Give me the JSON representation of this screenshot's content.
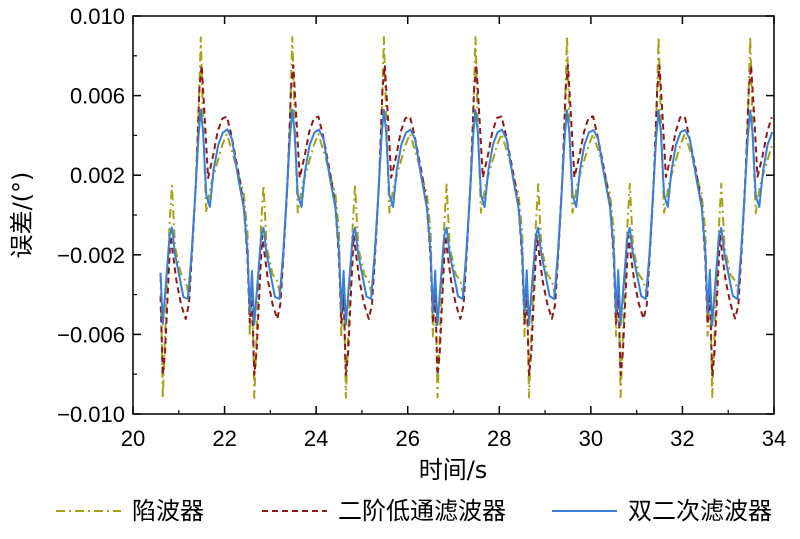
{
  "chart_data": {
    "type": "line",
    "title": "",
    "xlabel": "时间/s",
    "ylabel": "误差/(°)",
    "xlim": [
      20,
      34
    ],
    "ylim": [
      -0.01,
      0.01
    ],
    "x_ticks": [
      20,
      22,
      24,
      26,
      28,
      30,
      32,
      34
    ],
    "x_tick_labels": [
      "20",
      "22",
      "24",
      "26",
      "28",
      "30",
      "32",
      "34"
    ],
    "y_ticks": [
      -0.01,
      -0.006,
      -0.002,
      0.002,
      0.006,
      0.01
    ],
    "y_tick_labels": [
      "−0.010",
      "−0.006",
      "−0.002",
      "0.002",
      "0.006",
      "0.010"
    ],
    "grid": false,
    "legend_position": "bottom",
    "period": 2,
    "x_start": 20.6,
    "x_end": 34,
    "series": [
      {
        "name": "陷波器",
        "color": "#a3a31a",
        "style": "dashdot",
        "profile": [
          [
            0.0,
            -0.003
          ],
          [
            0.05,
            -0.009
          ],
          [
            0.1,
            -0.006
          ],
          [
            0.2,
            -0.0005
          ],
          [
            0.25,
            0.0015
          ],
          [
            0.32,
            -0.0015
          ],
          [
            0.45,
            -0.003
          ],
          [
            0.55,
            -0.0035
          ],
          [
            0.62,
            -0.004
          ],
          [
            0.68,
            -0.002
          ],
          [
            0.75,
            0.0005
          ],
          [
            0.82,
            0.004
          ],
          [
            0.88,
            0.009
          ],
          [
            0.94,
            0.004
          ],
          [
            1.0,
            0.0
          ],
          [
            1.1,
            0.0015
          ],
          [
            1.2,
            0.0025
          ],
          [
            1.35,
            0.0035
          ],
          [
            1.45,
            0.004
          ],
          [
            1.6,
            0.003
          ],
          [
            1.72,
            0.002
          ],
          [
            1.82,
            0.001
          ],
          [
            1.9,
            -0.001
          ],
          [
            1.95,
            -0.006
          ],
          [
            2.0,
            -0.003
          ]
        ]
      },
      {
        "name": "二阶低通滤波器",
        "color": "#8b1a1a",
        "style": "dashed",
        "profile": [
          [
            0.0,
            -0.004
          ],
          [
            0.05,
            -0.008
          ],
          [
            0.1,
            -0.007
          ],
          [
            0.15,
            -0.0045
          ],
          [
            0.22,
            -0.001
          ],
          [
            0.28,
            -0.002
          ],
          [
            0.35,
            -0.0035
          ],
          [
            0.45,
            -0.0045
          ],
          [
            0.55,
            -0.005
          ],
          [
            0.62,
            -0.0045
          ],
          [
            0.7,
            -0.0015
          ],
          [
            0.78,
            0.002
          ],
          [
            0.85,
            0.0065
          ],
          [
            0.9,
            0.0075
          ],
          [
            0.96,
            0.005
          ],
          [
            1.04,
            0.002
          ],
          [
            1.15,
            0.003
          ],
          [
            1.25,
            0.004
          ],
          [
            1.35,
            0.0048
          ],
          [
            1.45,
            0.005
          ],
          [
            1.55,
            0.004
          ],
          [
            1.7,
            0.002
          ],
          [
            1.82,
            0.0005
          ],
          [
            1.9,
            -0.002
          ],
          [
            1.95,
            -0.0055
          ],
          [
            2.0,
            -0.004
          ]
        ]
      },
      {
        "name": "双二次滤波器",
        "color": "#3a7fd5",
        "style": "solid",
        "profile": [
          [
            0.0,
            -0.0028
          ],
          [
            0.05,
            -0.0055
          ],
          [
            0.1,
            -0.004
          ],
          [
            0.2,
            -0.001
          ],
          [
            0.25,
            -0.0005
          ],
          [
            0.32,
            -0.002
          ],
          [
            0.4,
            -0.003
          ],
          [
            0.5,
            -0.004
          ],
          [
            0.6,
            -0.0042
          ],
          [
            0.68,
            -0.002
          ],
          [
            0.76,
            0.001
          ],
          [
            0.83,
            0.004
          ],
          [
            0.88,
            0.0053
          ],
          [
            0.93,
            0.004
          ],
          [
            1.0,
            0.001
          ],
          [
            1.08,
            0.0005
          ],
          [
            1.16,
            0.0022
          ],
          [
            1.26,
            0.0035
          ],
          [
            1.36,
            0.0042
          ],
          [
            1.46,
            0.0044
          ],
          [
            1.56,
            0.0038
          ],
          [
            1.7,
            0.0018
          ],
          [
            1.82,
            0.0005
          ],
          [
            1.9,
            -0.0018
          ],
          [
            1.95,
            -0.005
          ],
          [
            2.0,
            -0.0028
          ]
        ]
      }
    ]
  },
  "legend": {
    "items": [
      {
        "label": "陷波器"
      },
      {
        "label": "二阶低通滤波器"
      },
      {
        "label": "双二次滤波器"
      }
    ]
  }
}
